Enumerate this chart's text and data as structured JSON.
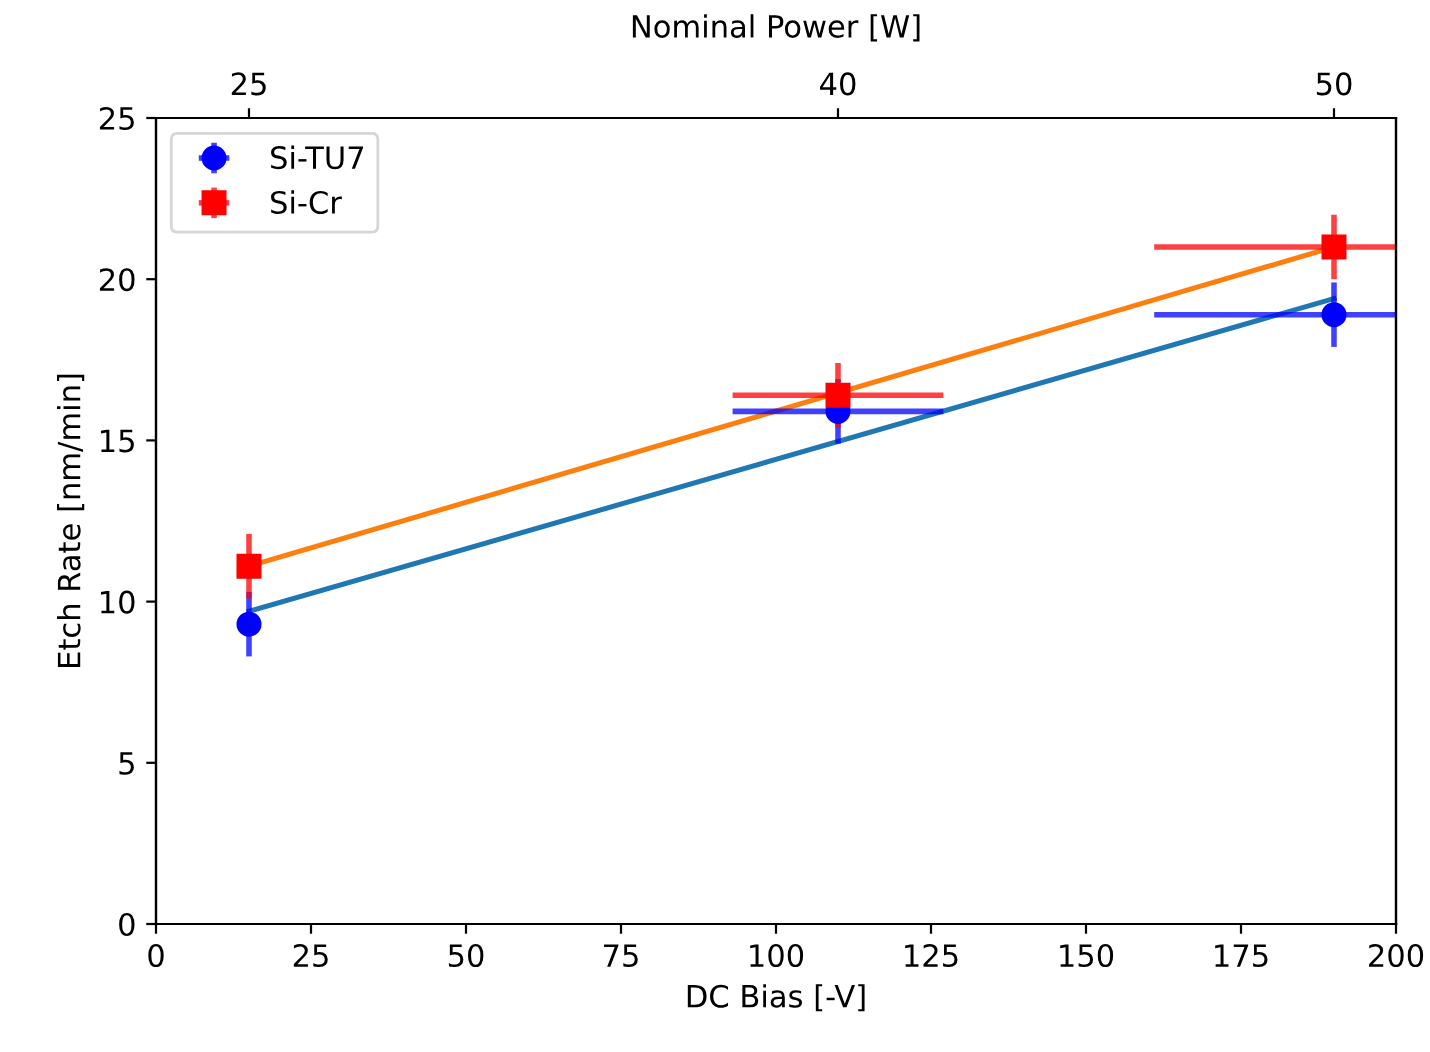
{
  "chart_data": {
    "type": "scatter",
    "xlabel": "DC Bias [-V]",
    "ylabel": "Etch Rate [nm/min]",
    "x2label": "Nominal Power [W]",
    "xlim": [
      0,
      200
    ],
    "xticks": [
      0,
      25,
      50,
      75,
      100,
      125,
      150,
      175,
      200
    ],
    "ylim": [
      0,
      25
    ],
    "yticks": [
      0,
      5,
      10,
      15,
      20,
      25
    ],
    "annotations": [
      "25",
      "40",
      "50"
    ],
    "grid": false,
    "legend": "top left",
    "series": [
      {
        "type": "line",
        "color": "#1f77b4",
        "x": [
          15,
          190
        ],
        "values": [
          9.7,
          19.4
        ],
        "marker": "none",
        "line_style": "solid"
      },
      {
        "type": "line",
        "color": "#ff7f0e",
        "x": [
          15,
          190
        ],
        "values": [
          11.1,
          21.0
        ],
        "marker": "none",
        "line_style": "solid"
      },
      {
        "name": "Si-TU7",
        "color": "#0000ff",
        "marker": "circle",
        "x": [
          15,
          110,
          190
        ],
        "values": [
          9.3,
          15.9,
          18.9
        ],
        "errors": [
          1,
          1,
          1
        ],
        "xerrors": [
          null,
          17,
          [
            161,
            200
          ]
        ]
      },
      {
        "name": "Si-Cr",
        "color": "#ff0000",
        "marker": "square",
        "x": [
          15,
          110,
          190
        ],
        "values": [
          11.1,
          16.4,
          21.0
        ],
        "errors": [
          1,
          1,
          1
        ],
        "xerrors": [
          null,
          17,
          [
            161,
            200
          ]
        ]
      }
    ]
  }
}
